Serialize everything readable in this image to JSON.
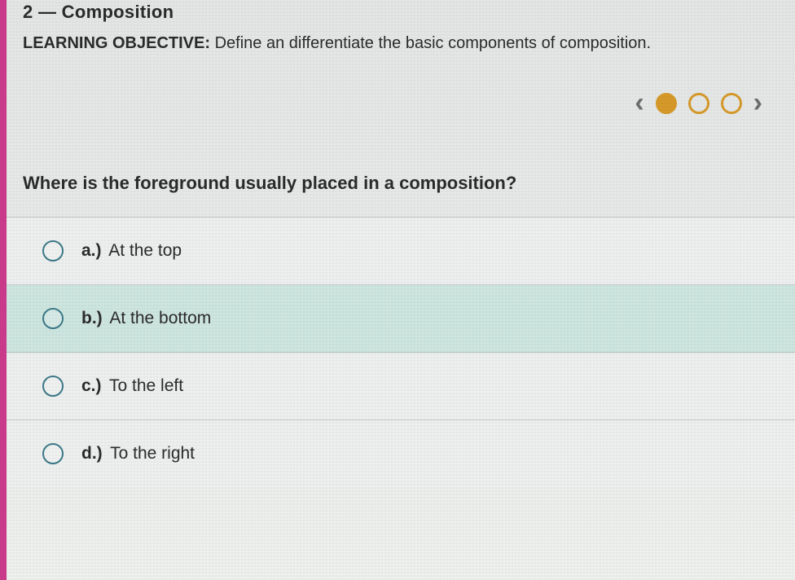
{
  "header": {
    "section_cut": "2 — Composition"
  },
  "objective": {
    "label": "LEARNING OBJECTIVE:",
    "text": "Define an differentiate the basic components of composition."
  },
  "pager": {
    "total": 3,
    "current": 1,
    "dot_color": "#d79a2a",
    "chev_color": "#6b6f6e"
  },
  "question": {
    "text": "Where is the foreground usually placed in a composition?"
  },
  "options": [
    {
      "letter": "a.)",
      "text": "At the top",
      "highlight": false
    },
    {
      "letter": "b.)",
      "text": "At the bottom",
      "highlight": true
    },
    {
      "letter": "c.)",
      "text": "To the left",
      "highlight": false
    },
    {
      "letter": "d.)",
      "text": "To the right",
      "highlight": false
    }
  ],
  "colors": {
    "accent_left_border": "#c93a8a",
    "highlight_bg": "#cfe7e1",
    "option_bg": "#eef1ef",
    "radio_border": "#3d7a8a",
    "text": "#2b2b2b"
  }
}
